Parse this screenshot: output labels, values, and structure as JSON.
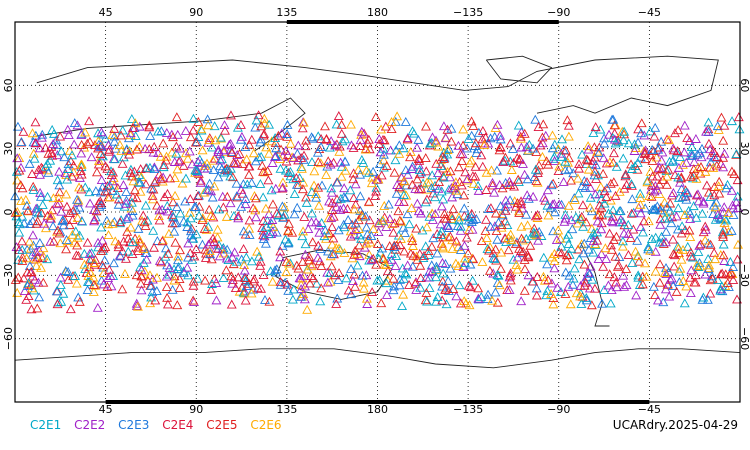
{
  "map": {
    "projection": "cylindrical-equidistant",
    "central_longitude": 180,
    "lon_range": [
      0,
      360
    ],
    "lat_range": [
      -90,
      90
    ],
    "grid_lines": "dotted",
    "marker": "open-triangle",
    "lon_ticks": [
      {
        "lon": 45,
        "label": "45"
      },
      {
        "lon": 90,
        "label": "90"
      },
      {
        "lon": 135,
        "label": "135"
      },
      {
        "lon": 180,
        "label": "180"
      },
      {
        "lon": 225,
        "label": "−135"
      },
      {
        "lon": 270,
        "label": "−90"
      },
      {
        "lon": 315,
        "label": "−45"
      }
    ],
    "lat_ticks": [
      {
        "lat": 60,
        "label": "60"
      },
      {
        "lat": 30,
        "label": "30"
      },
      {
        "lat": 0,
        "label": "0"
      },
      {
        "lat": -30,
        "label": "−30"
      },
      {
        "lat": -60,
        "label": "−60"
      }
    ],
    "observation_band_lat": [
      -45,
      45
    ],
    "series": [
      {
        "name": "C2E1",
        "color": "#00a8c8"
      },
      {
        "name": "C2E2",
        "color": "#a020c8"
      },
      {
        "name": "C2E3",
        "color": "#1e78dc"
      },
      {
        "name": "C2E4",
        "color": "#dc143c"
      },
      {
        "name": "C2E5",
        "color": "#e02020"
      },
      {
        "name": "C2E6",
        "color": "#ffaa00"
      }
    ]
  },
  "legend": {
    "items": [
      "C2E1",
      "C2E2",
      "C2E3",
      "C2E4",
      "C2E5",
      "C2E6"
    ]
  },
  "footer": {
    "dataset_label": "UCARdry.2025-04-29"
  }
}
